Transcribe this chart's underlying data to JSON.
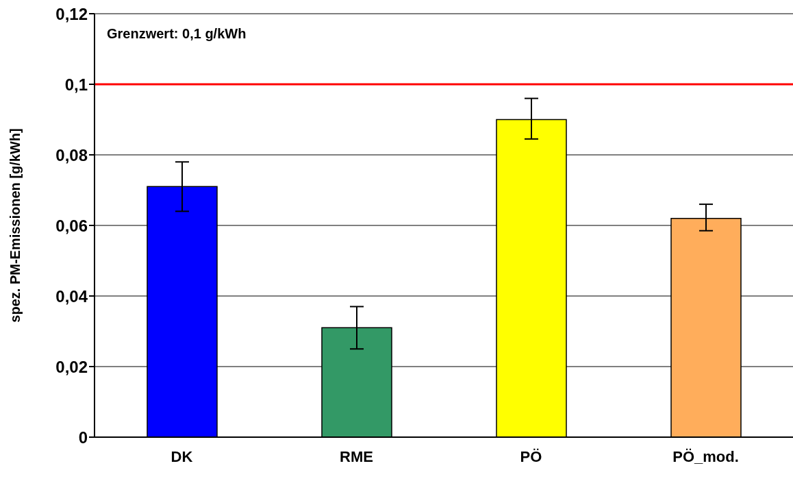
{
  "chart_data": {
    "type": "bar",
    "ylabel": "spez. PM-Emissionen [g/kWh]",
    "categories": [
      "DK",
      "RME",
      "PÖ",
      "PÖ_mod."
    ],
    "values": [
      0.071,
      0.031,
      0.09,
      0.062
    ],
    "colors": [
      "#0000ff",
      "#339966",
      "#ffff00",
      "#ffad5b"
    ],
    "errors": [
      [
        0.064,
        0.078
      ],
      [
        0.025,
        0.037
      ],
      [
        0.0845,
        0.096
      ],
      [
        0.0585,
        0.066
      ]
    ],
    "ylim": [
      0,
      0.12
    ],
    "yticks": [
      0,
      {
        "value": 0.02,
        "label": "0,02"
      },
      {
        "value": 0.04,
        "label": "0,04"
      },
      {
        "value": 0.06,
        "label": "0,06"
      },
      {
        "value": 0.08,
        "label": "0,08"
      },
      {
        "value": 0.1,
        "label": "0,1"
      },
      {
        "value": 0.12,
        "label": "0,12"
      }
    ],
    "grid": "y",
    "annotations": [
      "Grenzwert: 0,1 g/kWh"
    ],
    "ref_lines": [
      {
        "axis": "y",
        "value": 0.1,
        "color": "#ff0000"
      }
    ]
  }
}
